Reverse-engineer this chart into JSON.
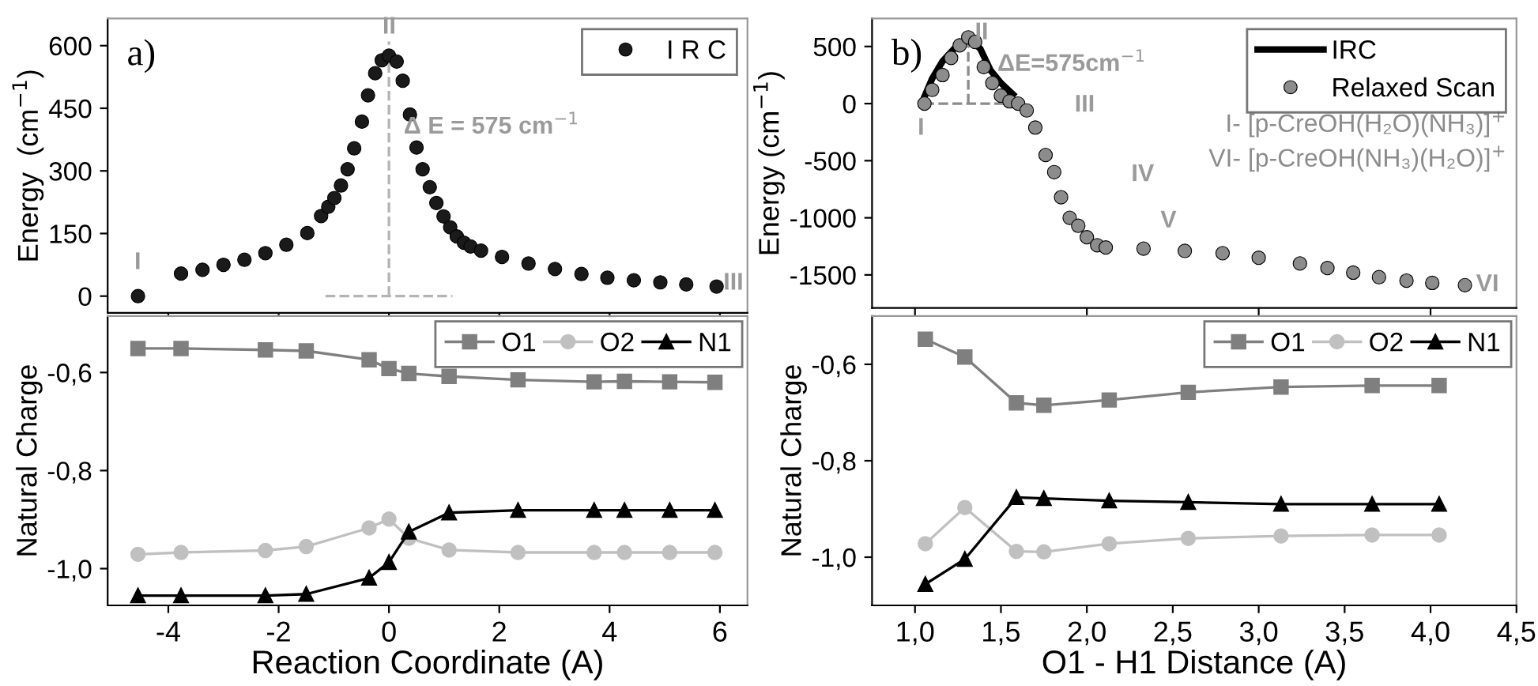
{
  "chart_data": [
    {
      "type": "scatter",
      "ylabel": "Energy  (cm$^{−1}$)",
      "xlim": [
        -5.1,
        6.5
      ],
      "ylim": [
        -40,
        665
      ],
      "yticks": [
        0,
        150,
        300,
        450,
        600
      ],
      "tick_labels": "y",
      "legend": "top right",
      "grid": false,
      "annotations": [
        "a)",
        "I",
        "II",
        "III",
        "Δ E = 575 cm$^{−1}$"
      ],
      "series": [
        {
          "name": "I R C",
          "color": "#1a1a1a",
          "marker": "circle",
          "x": [
            -4.55,
            -3.77,
            -3.38,
            -3.0,
            -2.62,
            -2.24,
            -1.86,
            -1.48,
            -1.23,
            -1.1,
            -0.99,
            -0.87,
            -0.75,
            -0.63,
            -0.49,
            -0.38,
            -0.25,
            -0.13,
            0.0,
            0.14,
            0.25,
            0.38,
            0.5,
            0.61,
            0.74,
            0.86,
            0.99,
            1.11,
            1.23,
            1.36,
            1.48,
            1.67,
            2.05,
            2.53,
            3.01,
            3.49,
            3.96,
            4.44,
            4.92,
            5.39,
            5.94
          ],
          "values": [
            0,
            54,
            63,
            75,
            87,
            103,
            123,
            151,
            192,
            214,
            235,
            265,
            304,
            354,
            418,
            481,
            534,
            565,
            576,
            562,
            516,
            435,
            356,
            304,
            261,
            223,
            191,
            165,
            143,
            128,
            119,
            109,
            94,
            78,
            65,
            53,
            44,
            38,
            33,
            28,
            23
          ]
        },
        {
          "type": "line",
          "color": "#b4b4b4",
          "line_style": "dashed",
          "x": [
            0.0,
            0.0
          ],
          "values": [
            0,
            610
          ]
        },
        {
          "type": "line",
          "color": "#b4b4b4",
          "line_style": "dashed",
          "x": [
            -1.15,
            1.15
          ],
          "values": [
            0,
            0
          ]
        }
      ]
    },
    {
      "type": "scatter",
      "ylabel": "Energy (cm$^{−1}$)",
      "xlim": [
        0.75,
        4.5
      ],
      "ylim": [
        -1790,
        745
      ],
      "yticks": [
        -1500,
        -1000,
        -500,
        0,
        500
      ],
      "tick_labels": "y",
      "legend": "top right",
      "grid": false,
      "annotations": [
        "b)",
        "I- [p-CreOH(H₂O)(NH₃)]$^{+}$",
        "VI- [p-CreOH(NH₃)(H₂O)]$^{+}$",
        "I",
        "II",
        "III",
        "IV",
        "V",
        "VI",
        "ΔE=575cm$^{−1}$"
      ],
      "series": [
        {
          "name": "IRC",
          "type": "line",
          "color": "#000000",
          "line_style": "solid",
          "x": [
            1.055,
            1.1,
            1.16,
            1.24,
            1.31,
            1.38,
            1.44,
            1.5,
            1.57
          ],
          "values": [
            60,
            220,
            370,
            500,
            580,
            480,
            290,
            180,
            80
          ]
        },
        {
          "name": "Relaxed Scan",
          "color": "#8c8c8c",
          "marker": "circle",
          "x": [
            1.055,
            1.1,
            1.16,
            1.21,
            1.26,
            1.31,
            1.35,
            1.4,
            1.45,
            1.5,
            1.55,
            1.6,
            1.65,
            1.7,
            1.76,
            1.81,
            1.85,
            1.9,
            1.95,
            2.0,
            2.06,
            2.11,
            2.33,
            2.57,
            2.79,
            3.0,
            3.24,
            3.4,
            3.55,
            3.7,
            3.86,
            4.01,
            4.2
          ],
          "values": [
            0,
            120,
            250,
            400,
            510,
            580,
            540,
            320,
            180,
            70,
            20,
            0,
            -60,
            -210,
            -450,
            -600,
            -820,
            -1000,
            -1070,
            -1170,
            -1240,
            -1260,
            -1270,
            -1290,
            -1310,
            -1350,
            -1400,
            -1440,
            -1480,
            -1520,
            -1550,
            -1570,
            -1590
          ]
        },
        {
          "type": "line",
          "color": "#8c8c8c",
          "line_style": "dashed",
          "x": [
            1.31,
            1.31
          ],
          "values": [
            0,
            580
          ]
        },
        {
          "type": "line",
          "color": "#8c8c8c",
          "line_style": "dashed",
          "x": [
            1.055,
            1.6
          ],
          "values": [
            0,
            0
          ]
        }
      ]
    },
    {
      "type": "line",
      "xlabel": "Reaction Coordinate (A)",
      "ylabel": "Natural Charge",
      "xlim": [
        -5.1,
        6.5
      ],
      "xticks": [
        -4,
        -2,
        0,
        2,
        4,
        6
      ],
      "ylim": [
        -1.075,
        -0.485
      ],
      "yticks": [
        {
          "value": -1.0,
          "label": "-1,0"
        },
        {
          "value": -0.8,
          "label": "-0,8"
        },
        {
          "value": -0.6,
          "label": "-0,6"
        }
      ],
      "legend": "top right",
      "grid": false,
      "line_style": "solid",
      "x": [
        -4.55,
        -3.77,
        -2.24,
        -1.5,
        -0.36,
        0.0,
        0.36,
        1.09,
        2.34,
        3.72,
        4.27,
        5.09,
        5.91
      ],
      "series": [
        {
          "name": "O1",
          "color": "#7f7f7f",
          "marker": "square",
          "values": [
            -0.551,
            -0.551,
            -0.554,
            -0.556,
            -0.574,
            -0.592,
            -0.602,
            -0.608,
            -0.615,
            -0.619,
            -0.618,
            -0.619,
            -0.62
          ]
        },
        {
          "name": "O2",
          "color": "#c0c0c0",
          "marker": "circle",
          "values": [
            -0.971,
            -0.967,
            -0.963,
            -0.955,
            -0.917,
            -0.899,
            -0.938,
            -0.962,
            -0.967,
            -0.967,
            -0.967,
            -0.967,
            -0.967
          ]
        },
        {
          "name": "N1",
          "color": "#000000",
          "marker": "triangle",
          "values": [
            -1.055,
            -1.055,
            -1.055,
            -1.052,
            -1.019,
            -0.987,
            -0.925,
            -0.886,
            -0.881,
            -0.881,
            -0.881,
            -0.881,
            -0.881
          ]
        }
      ]
    },
    {
      "type": "line",
      "xlabel": "O1 - H1 Distance (A)",
      "ylabel": "Natural Charge",
      "xlim": [
        0.75,
        4.5
      ],
      "xticks": [
        {
          "value": 1.0,
          "label": "1,0"
        },
        {
          "value": 1.5,
          "label": "1,5"
        },
        {
          "value": 2.0,
          "label": "2,0"
        },
        {
          "value": 2.5,
          "label": "2,5"
        },
        {
          "value": 3.0,
          "label": "3,0"
        },
        {
          "value": 3.5,
          "label": "3,5"
        },
        {
          "value": 4.0,
          "label": "4,0"
        },
        {
          "value": 4.5,
          "label": "4,5"
        }
      ],
      "ylim": [
        -1.1,
        -0.5
      ],
      "yticks": [
        {
          "value": -1.0,
          "label": "-1,0"
        },
        {
          "value": -0.8,
          "label": "-0,8"
        },
        {
          "value": -0.6,
          "label": "-0,6"
        }
      ],
      "legend": "top right",
      "grid": false,
      "line_style": "solid",
      "x": [
        1.06,
        1.29,
        1.59,
        1.75,
        2.13,
        2.59,
        3.13,
        3.66,
        4.05
      ],
      "series": [
        {
          "name": "O1",
          "color": "#7f7f7f",
          "marker": "square",
          "values": [
            -0.548,
            -0.585,
            -0.68,
            -0.685,
            -0.674,
            -0.658,
            -0.647,
            -0.644,
            -0.644
          ]
        },
        {
          "name": "O2",
          "color": "#c0c0c0",
          "marker": "circle",
          "values": [
            -0.972,
            -0.897,
            -0.988,
            -0.989,
            -0.972,
            -0.961,
            -0.956,
            -0.954,
            -0.954
          ]
        },
        {
          "name": "N1",
          "color": "#000000",
          "marker": "triangle",
          "values": [
            -1.056,
            -1.004,
            -0.876,
            -0.878,
            -0.883,
            -0.886,
            -0.89,
            -0.89,
            -0.89
          ]
        }
      ]
    }
  ]
}
